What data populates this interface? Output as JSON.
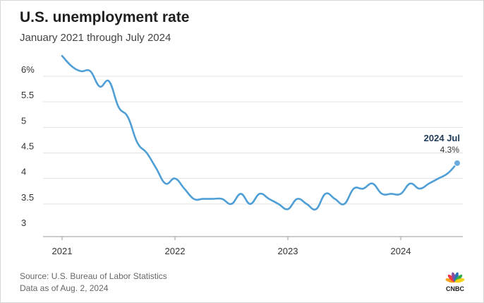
{
  "header": {
    "title": "U.S. unemployment rate",
    "subtitle": "January 2021 through July 2024"
  },
  "footer": {
    "source": "Source: U.S. Bureau of Labor Statistics",
    "date_note": "Data as of Aug. 2, 2024"
  },
  "brand": {
    "name": "CNBC",
    "peacock_colors": [
      "#f6a21e",
      "#ee3a43",
      "#8a4fa0",
      "#2a74b8",
      "#3bab4a",
      "#f7d117"
    ]
  },
  "colors": {
    "line": "#4f9fd6",
    "grid": "#e3e3e3",
    "axis": "#999999",
    "marker": "#6aabe0"
  },
  "chart_data": {
    "type": "line",
    "ylim": [
      3,
      6
    ],
    "yticks": [
      3,
      3.5,
      4,
      4.5,
      5,
      5.5,
      6
    ],
    "ytick_labels": [
      "3",
      "3.5",
      "4",
      "4.5",
      "5",
      "5.5",
      "6%"
    ],
    "xticks": [
      2021,
      2022,
      2023,
      2024
    ],
    "xtick_labels": [
      "2021",
      "2022",
      "2023",
      "2024"
    ],
    "grid": true,
    "annotation": {
      "label": "2024 Jul",
      "value_label": "4.3%"
    },
    "series": [
      {
        "x": [
          "2021-01",
          "2021-02",
          "2021-03",
          "2021-04",
          "2021-05",
          "2021-06",
          "2021-07",
          "2021-08",
          "2021-09",
          "2021-10",
          "2021-11",
          "2021-12",
          "2022-01",
          "2022-02",
          "2022-03",
          "2022-04",
          "2022-05",
          "2022-06",
          "2022-07",
          "2022-08",
          "2022-09",
          "2022-10",
          "2022-11",
          "2022-12",
          "2023-01",
          "2023-02",
          "2023-03",
          "2023-04",
          "2023-05",
          "2023-06",
          "2023-07",
          "2023-08",
          "2023-09",
          "2023-10",
          "2023-11",
          "2023-12",
          "2024-01",
          "2024-02",
          "2024-03",
          "2024-04",
          "2024-05",
          "2024-06",
          "2024-07"
        ],
        "values": [
          6.4,
          6.2,
          6.1,
          6.1,
          5.8,
          5.9,
          5.4,
          5.2,
          4.7,
          4.5,
          4.2,
          3.9,
          4.0,
          3.8,
          3.6,
          3.6,
          3.6,
          3.6,
          3.5,
          3.7,
          3.5,
          3.7,
          3.6,
          3.5,
          3.4,
          3.6,
          3.5,
          3.4,
          3.7,
          3.6,
          3.5,
          3.8,
          3.8,
          3.9,
          3.7,
          3.7,
          3.7,
          3.9,
          3.8,
          3.9,
          4.0,
          4.1,
          4.3
        ]
      }
    ]
  }
}
